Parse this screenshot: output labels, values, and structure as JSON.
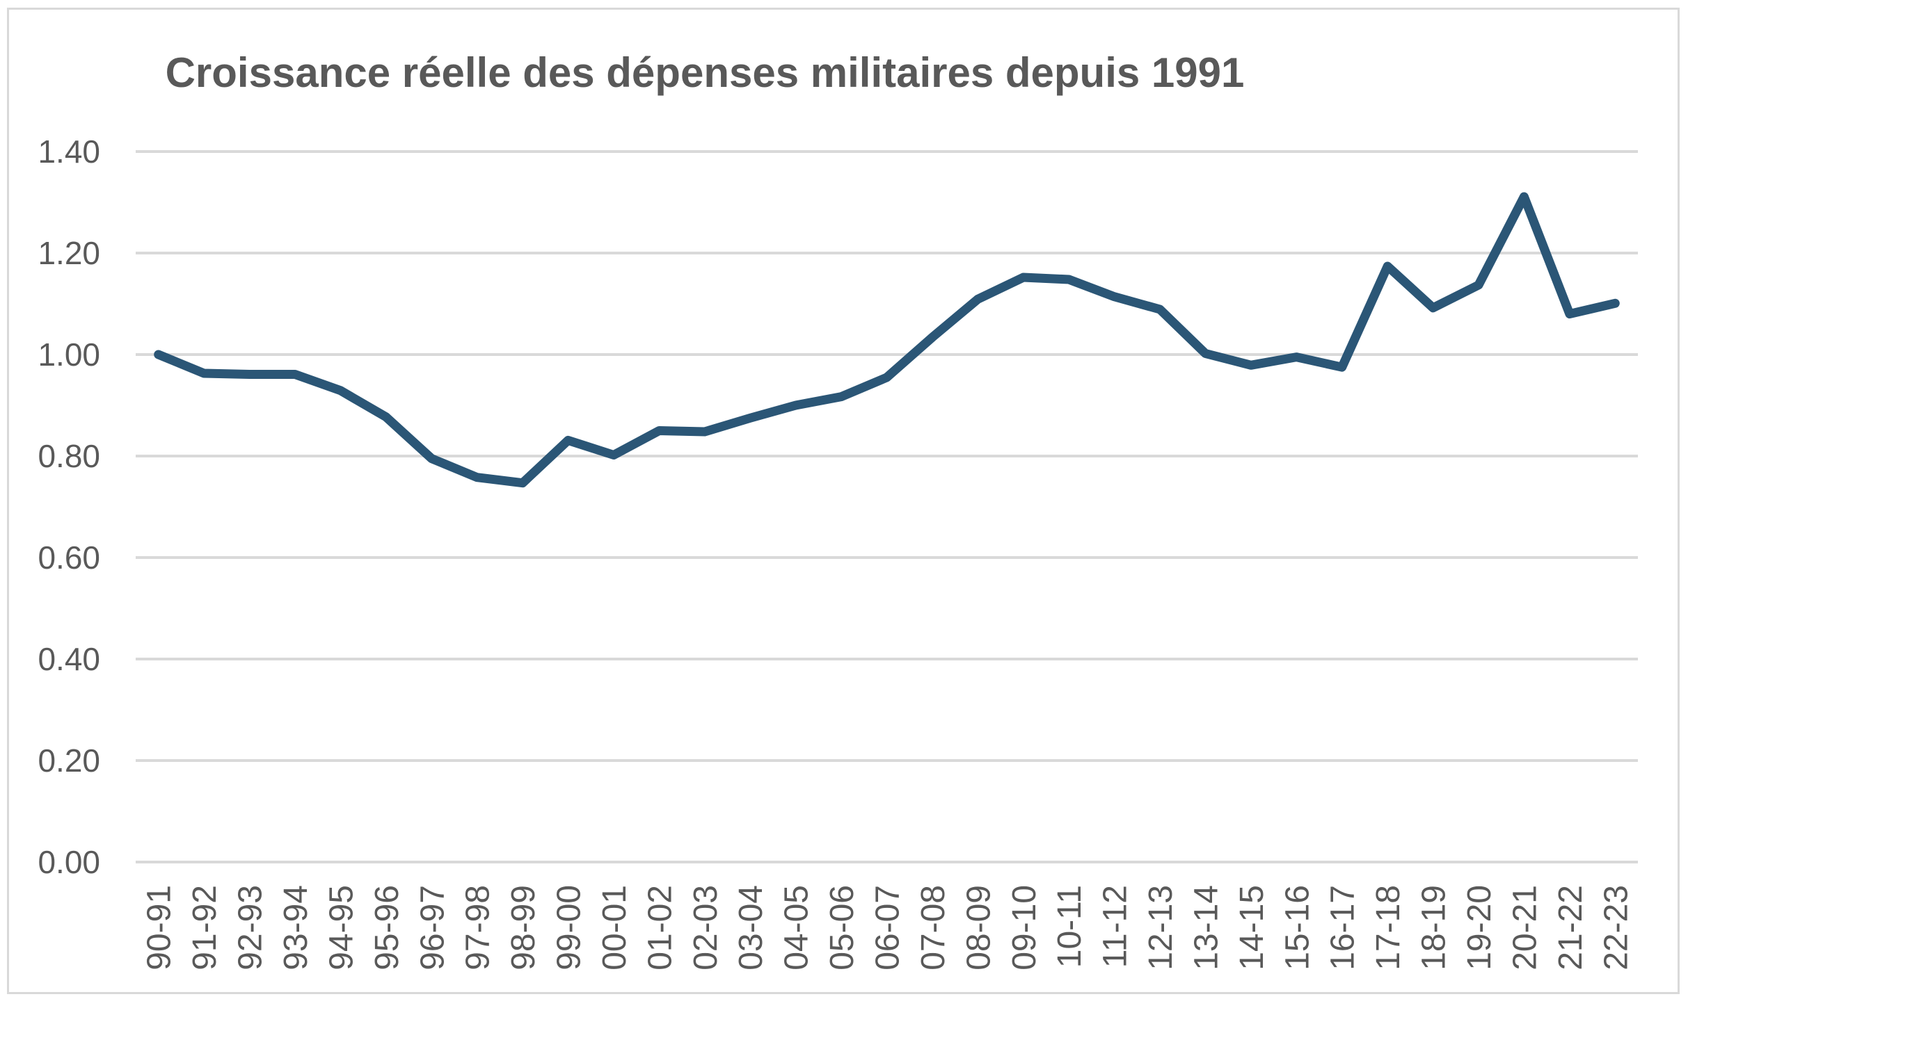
{
  "chart_data": {
    "type": "line",
    "title": "Croissance réelle des dépenses militaires depuis 1991",
    "xlabel": "",
    "ylabel": "",
    "ylim": [
      0,
      1.4
    ],
    "yticks": [
      "0.00",
      "0.20",
      "0.40",
      "0.60",
      "0.80",
      "1.00",
      "1.20",
      "1.40"
    ],
    "ytick_values": [
      0,
      0.2,
      0.4,
      0.6,
      0.8,
      1.0,
      1.2,
      1.4
    ],
    "grid": true,
    "legend": "none",
    "categories": [
      "90-91",
      "91-92",
      "92-93",
      "93-94",
      "94-95",
      "95-96",
      "96-97",
      "97-98",
      "98-99",
      "99-00",
      "00-01",
      "01-02",
      "02-03",
      "03-04",
      "04-05",
      "05-06",
      "06-07",
      "07-08",
      "08-09",
      "09-10",
      "10-11",
      "11-12",
      "12-13",
      "13-14",
      "14-15",
      "15-16",
      "16-17",
      "17-18",
      "18-19",
      "19-20",
      "20-21",
      "21-22",
      "22-23"
    ],
    "series": [
      {
        "name": "Croissance réelle",
        "color": "#2B5676",
        "values": [
          1.0,
          0.963,
          0.961,
          0.961,
          0.929,
          0.877,
          0.795,
          0.758,
          0.747,
          0.831,
          0.802,
          0.85,
          0.848,
          0.875,
          0.9,
          0.917,
          0.955,
          1.034,
          1.109,
          1.152,
          1.148,
          1.114,
          1.089,
          1.002,
          0.979,
          0.995,
          0.975,
          1.174,
          1.092,
          1.137,
          1.311,
          1.08,
          1.101
        ]
      }
    ]
  }
}
